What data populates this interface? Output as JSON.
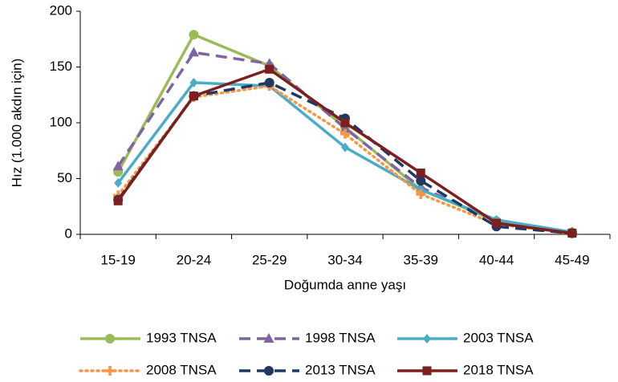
{
  "chart_data": {
    "type": "line",
    "y_label": "Hız (1.000 akdın için)",
    "x_label": "Doğumda anne yaşı",
    "categories": [
      "15-19",
      "20-24",
      "25-29",
      "30-34",
      "35-39",
      "40-44",
      "45-49"
    ],
    "ylim": [
      0,
      200
    ],
    "yticks": [
      0,
      50,
      100,
      150,
      200
    ],
    "grid": false,
    "legend": "bottom",
    "series": [
      {
        "name": "1993 TNSA",
        "color": "#9bbb59",
        "dash": "solid",
        "marker": "circle",
        "values": [
          56,
          179,
          151,
          96,
          40,
          12,
          2
        ]
      },
      {
        "name": "1998 TNSA",
        "color": "#8064a2",
        "dash": "dash",
        "marker": "triangle",
        "values": [
          61,
          163,
          153,
          95,
          42,
          12,
          2
        ]
      },
      {
        "name": "2003 TNSA",
        "color": "#4bacc6",
        "dash": "solid",
        "marker": "diamond",
        "values": [
          46,
          136,
          133,
          78,
          40,
          13,
          2
        ]
      },
      {
        "name": "2008 TNSA",
        "color": "#f79646",
        "dash": "dot",
        "marker": "plus",
        "values": [
          35,
          123,
          133,
          90,
          36,
          9,
          1
        ]
      },
      {
        "name": "2013 TNSA",
        "color": "#1f3864",
        "dash": "dash",
        "marker": "circle",
        "values": [
          31,
          124,
          136,
          104,
          48,
          7,
          1
        ]
      },
      {
        "name": "2018 TNSA",
        "color": "#7b1f1f",
        "dash": "solid",
        "marker": "square",
        "values": [
          30,
          124,
          148,
          100,
          55,
          10,
          1
        ]
      }
    ]
  }
}
